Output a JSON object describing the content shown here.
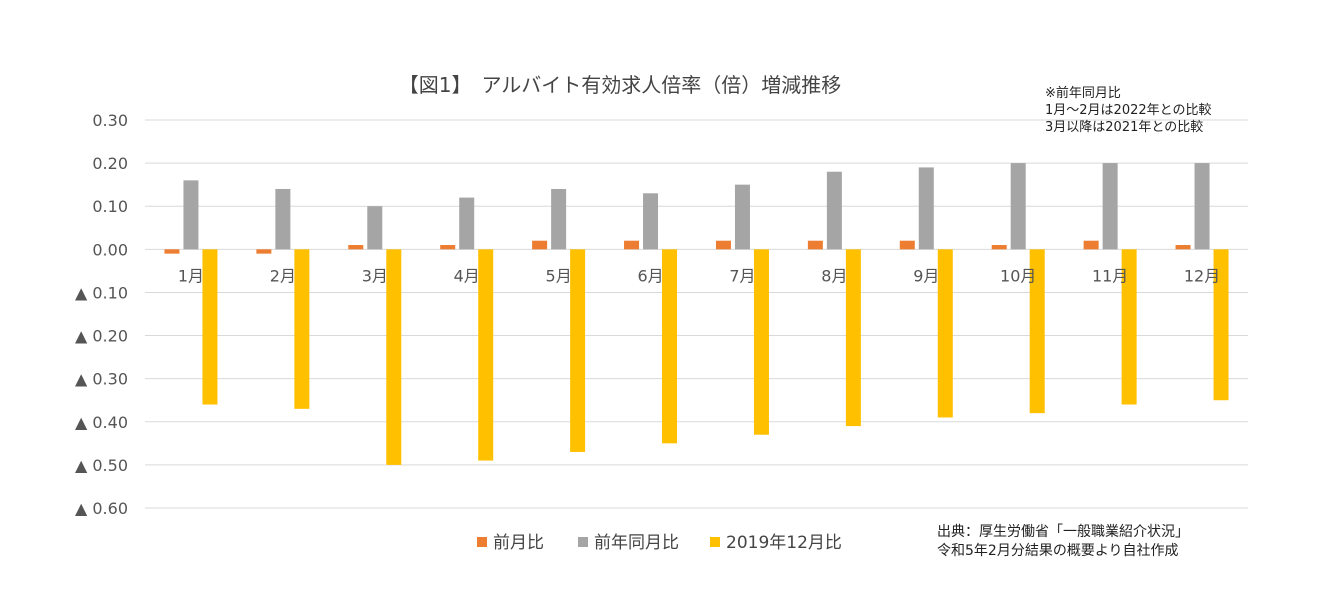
{
  "chart_data": {
    "type": "bar",
    "title": "【図1】　アルバイト有効求人倍率（倍）増減推移",
    "categories": [
      "1月",
      "2月",
      "3月",
      "4月",
      "5月",
      "6月",
      "7月",
      "8月",
      "9月",
      "10月",
      "11月",
      "12月"
    ],
    "series": [
      {
        "name": "前月比",
        "color": "#ED7D31",
        "values": [
          -0.01,
          -0.01,
          0.01,
          0.01,
          0.02,
          0.02,
          0.02,
          0.02,
          0.02,
          0.01,
          0.02,
          0.01
        ]
      },
      {
        "name": "前年同月比",
        "color": "#A5A5A5",
        "values": [
          0.16,
          0.14,
          0.1,
          0.12,
          0.14,
          0.13,
          0.15,
          0.18,
          0.19,
          0.2,
          0.2,
          0.2
        ]
      },
      {
        "name": "2019年12月比",
        "color": "#FFC000",
        "values": [
          -0.36,
          -0.37,
          -0.5,
          -0.49,
          -0.47,
          -0.45,
          -0.43,
          -0.41,
          -0.39,
          -0.38,
          -0.36,
          -0.35
        ]
      }
    ],
    "ylim": [
      -0.6,
      0.3
    ],
    "yticks": [
      {
        "value": 0.3,
        "label": "0.30"
      },
      {
        "value": 0.2,
        "label": "0.20"
      },
      {
        "value": 0.1,
        "label": "0.10"
      },
      {
        "value": 0.0,
        "label": "0.00"
      },
      {
        "value": -0.1,
        "label": "▲ 0.10"
      },
      {
        "value": -0.2,
        "label": "▲ 0.20"
      },
      {
        "value": -0.3,
        "label": "▲ 0.30"
      },
      {
        "value": -0.4,
        "label": "▲ 0.40"
      },
      {
        "value": -0.5,
        "label": "▲ 0.50"
      },
      {
        "value": -0.6,
        "label": "▲ 0.60"
      }
    ],
    "grid": true,
    "legend": "bottom",
    "annotations": {
      "note_lines": [
        "※前年同月比",
        "1月～2月は2022年との比較",
        "3月以降は2021年との比較"
      ],
      "source_lines": [
        "出典：厚生労働省「一般職業紹介状況」",
        "令和5年2月分結果の概要より自社作成"
      ]
    }
  }
}
